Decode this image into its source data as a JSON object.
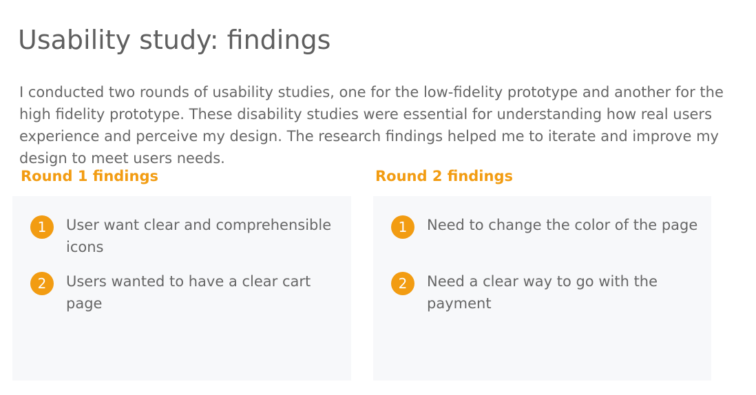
{
  "title": "Usability study: findings",
  "intro": "I conducted two rounds of usability studies, one for the low-fidelity prototype and another for the high fidelity prototype. These disability studies were essential for understanding how real users experience and perceive my design. The research findings helped me to iterate and improve my design to meet users needs.",
  "rounds": [
    {
      "heading": "Round 1 findings",
      "items": [
        {
          "number": "1",
          "text": "User want clear and comprehensible icons"
        },
        {
          "number": "2",
          "text": "Users wanted to have a clear cart page"
        }
      ]
    },
    {
      "heading": "Round 2 findings",
      "items": [
        {
          "number": "1",
          "text": "Need to change the color of the page"
        },
        {
          "number": "2",
          "text": "Need a clear way to go with the payment"
        }
      ]
    }
  ],
  "colors": {
    "accent": "#f29c12",
    "text": "#666666",
    "card_background": "#f7f8fa"
  }
}
